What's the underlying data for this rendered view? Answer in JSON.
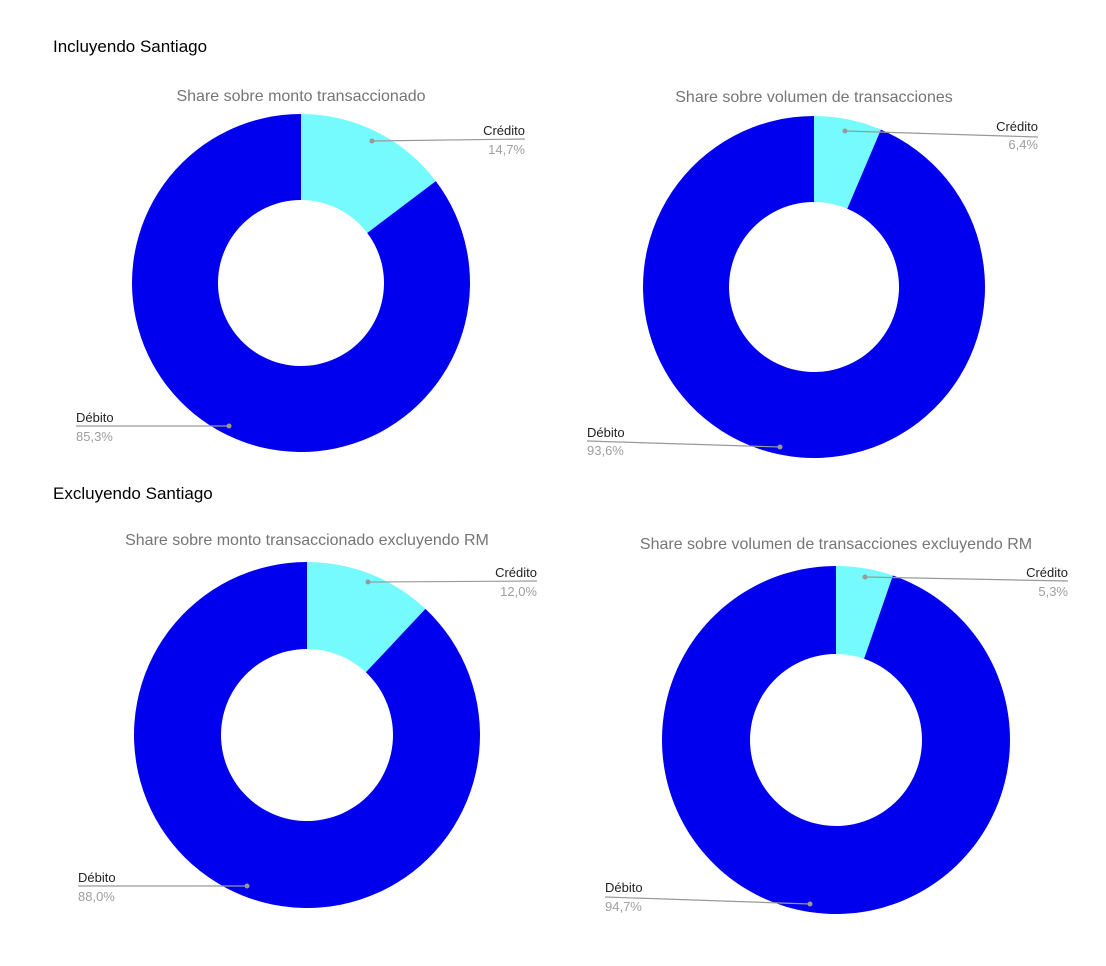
{
  "sections": [
    {
      "heading": "Incluyendo Santiago"
    },
    {
      "heading": "Excluyendo Santiago"
    }
  ],
  "colors": {
    "debito": "#0000ee",
    "credito": "#75fbfd",
    "leader": "#999999",
    "title": "#757575"
  },
  "chart_data": [
    {
      "type": "pie",
      "style": "donut",
      "title": "Share sobre monto transaccionado",
      "slices": [
        {
          "name": "Crédito",
          "value": 14.7,
          "label": "14,7%"
        },
        {
          "name": "Débito",
          "value": 85.3,
          "label": "85,3%"
        }
      ]
    },
    {
      "type": "pie",
      "style": "donut",
      "title": "Share sobre volumen de transacciones",
      "slices": [
        {
          "name": "Crédito",
          "value": 6.4,
          "label": "6,4%"
        },
        {
          "name": "Débito",
          "value": 93.6,
          "label": "93,6%"
        }
      ]
    },
    {
      "type": "pie",
      "style": "donut",
      "title": "Share sobre monto transaccionado excluyendo RM",
      "slices": [
        {
          "name": "Crédito",
          "value": 12.0,
          "label": "12,0%"
        },
        {
          "name": "Débito",
          "value": 88.0,
          "label": "88,0%"
        }
      ]
    },
    {
      "type": "pie",
      "style": "donut",
      "title": "Share sobre volumen de transacciones excluyendo RM",
      "slices": [
        {
          "name": "Crédito",
          "value": 5.3,
          "label": "5,3%"
        },
        {
          "name": "Débito",
          "value": 94.7,
          "label": "94,7%"
        }
      ]
    }
  ]
}
